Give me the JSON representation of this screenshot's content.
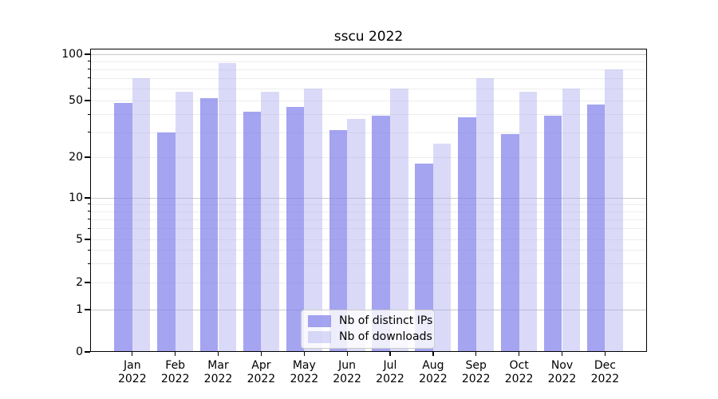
{
  "window": {
    "title": "sscu 2022"
  },
  "chart_data": {
    "type": "bar",
    "title": "sscu 2022",
    "categories": [
      "Jan 2022",
      "Feb 2022",
      "Mar 2022",
      "Apr 2022",
      "May 2022",
      "Jun 2022",
      "Jul 2022",
      "Aug 2022",
      "Sep 2022",
      "Oct 2022",
      "Nov 2022",
      "Dec 2022"
    ],
    "series": [
      {
        "name": "Nb of distinct IPs",
        "color": "#8181ec",
        "opacity": 0.72,
        "values": [
          48,
          30,
          52,
          42,
          45,
          31,
          39,
          18,
          38,
          29,
          39,
          47
        ]
      },
      {
        "name": "Nb of downloads",
        "color": "#adadef",
        "opacity": 0.45,
        "values": [
          70,
          57,
          88,
          57,
          60,
          37,
          60,
          25,
          70,
          57,
          60,
          80
        ]
      }
    ],
    "yscale": "symlog",
    "y_ticks": [
      100,
      50,
      20,
      10,
      5,
      2,
      1,
      0
    ],
    "y_minor_ticks": [
      2,
      3,
      4,
      5,
      6,
      7,
      8,
      9,
      20,
      30,
      40,
      50,
      60,
      70,
      80,
      90
    ],
    "ylim": [
      0,
      105
    ],
    "xlabel": "",
    "ylabel": "",
    "grid": true,
    "legend_position": "lower center",
    "axis_color": "#000000",
    "major_grid_color": "#c9c9c9",
    "minor_grid_color": "#ededed"
  }
}
